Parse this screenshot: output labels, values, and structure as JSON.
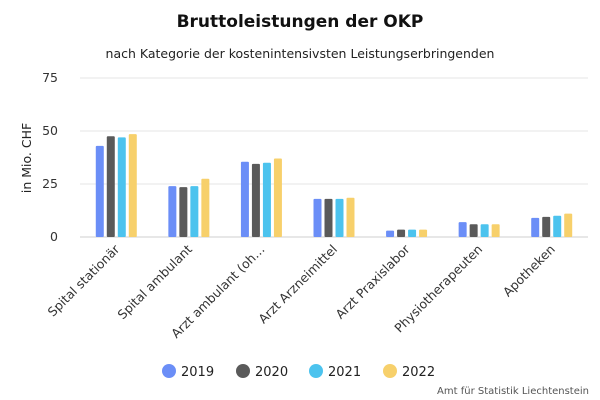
{
  "chart_data": {
    "type": "bar",
    "title": "Bruttoleistungen der OKP",
    "subtitle": "nach Kategorie der kostenintensivsten Leistungserbringenden",
    "ylabel": "in Mio. CHF",
    "xlabel": "",
    "ylim": [
      0,
      75
    ],
    "yticks": [
      0,
      25,
      50,
      75
    ],
    "grid": true,
    "legend_position": "bottom",
    "categories": [
      "Spital stationär",
      "Spital ambulant",
      "Arzt ambulant (oh…",
      "Arzt Arzneimittel",
      "Arzt Praxislabor",
      "Physiotherapeuten",
      "Apotheken"
    ],
    "series": [
      {
        "name": "2019",
        "color": "#6b8ef7",
        "values": [
          43,
          24,
          35.5,
          18,
          3,
          7,
          9
        ]
      },
      {
        "name": "2020",
        "color": "#5a5a5a",
        "values": [
          47.5,
          23.5,
          34.5,
          18,
          3.5,
          6,
          9.5
        ]
      },
      {
        "name": "2021",
        "color": "#4cc3ee",
        "values": [
          47,
          24,
          35,
          18,
          3.5,
          6,
          10
        ]
      },
      {
        "name": "2022",
        "color": "#f7d06b",
        "values": [
          48.5,
          27.5,
          37,
          18.5,
          3.5,
          6,
          11
        ]
      }
    ],
    "credit": "Amt für Statistik Liechtenstein"
  }
}
